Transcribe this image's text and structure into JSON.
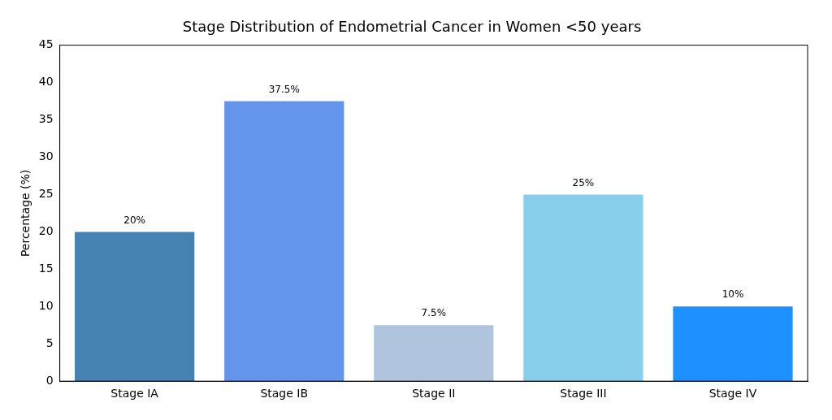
{
  "chart_data": {
    "type": "bar",
    "title": "Stage Distribution of Endometrial Cancer in Women <50 years",
    "ylabel": "Percentage (%)",
    "categories": [
      "Stage IA",
      "Stage IB",
      "Stage II",
      "Stage III",
      "Stage IV"
    ],
    "values": [
      20,
      37.5,
      7.5,
      25,
      10
    ],
    "colors": [
      "#4682b4",
      "#6495ed",
      "#b0c4de",
      "#87ceeb",
      "#1e90ff"
    ],
    "value_labels": [
      "20%",
      "37.5%",
      "7.5%",
      "25%",
      "10%"
    ],
    "ylim": [
      0,
      45
    ],
    "yticks": [
      0,
      5,
      10,
      15,
      20,
      25,
      30,
      35,
      40,
      45
    ],
    "grid": false,
    "legend": false
  }
}
